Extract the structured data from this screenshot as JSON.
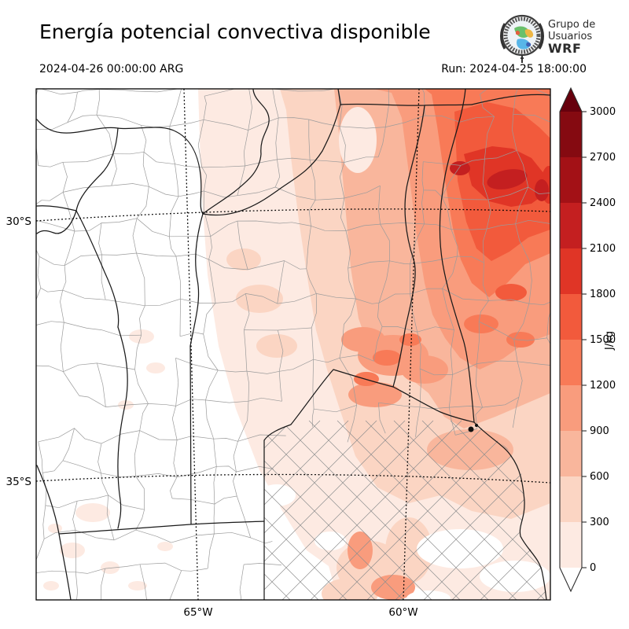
{
  "header": {
    "title": "Energía potencial convectiva disponible",
    "valid_time": "2024-04-26 00:00:00 ARG",
    "run_time": "Run: 2024-04-25 18:00:00",
    "logo": {
      "line1": "Grupo de",
      "line2": "Usuarios",
      "line3": "WRF"
    }
  },
  "map": {
    "lat_labels": [
      "30°S",
      "35°S"
    ],
    "lon_labels": [
      "65°W",
      "60°W"
    ]
  },
  "colorbar": {
    "unit": "J/kg",
    "ticks": [
      "0",
      "300",
      "600",
      "900",
      "1200",
      "1500",
      "1800",
      "2100",
      "2400",
      "2700",
      "3000"
    ]
  },
  "colors": {
    "palette": [
      "#fdeae2",
      "#fbd5c3",
      "#f9b69c",
      "#f99c7d",
      "#f87a57",
      "#f25a3c",
      "#e03526",
      "#c41f20",
      "#a31116",
      "#850a11"
    ],
    "over": "#67000d",
    "under": "#ffffff",
    "white": "#ffffff",
    "province_border": "#1a1a1a",
    "department_border": "#9b9b9b"
  },
  "chart_data": {
    "type": "heatmap",
    "title": "Energía potencial convectiva disponible",
    "variable": "CAPE (convective available potential energy), WRF model output over central-eastern Argentina",
    "units": "J/kg",
    "valid_time": "2024-04-26 00:00:00 ARG",
    "run_time": "2024-04-25 18:00:00",
    "colorbar_levels": [
      0,
      300,
      600,
      900,
      1200,
      1500,
      1800,
      2100,
      2400,
      2700,
      3000
    ],
    "colorbar_extend": "both",
    "lat_gridlines": [
      "30°S",
      "35°S"
    ],
    "lon_gridlines": [
      "65°W",
      "60°W"
    ],
    "legend_position": "right vertical colorbar",
    "grid": "dotted graticule",
    "max_region": "northeast corner of domain, core ≈ 2100–2400 J/kg near 59°W 29°S",
    "mid_region": "central band ≈ 900–1500 J/kg along 60°W between 30°S and 32°S",
    "min_region": "western third of domain ≈ 0 J/kg (white)"
  }
}
